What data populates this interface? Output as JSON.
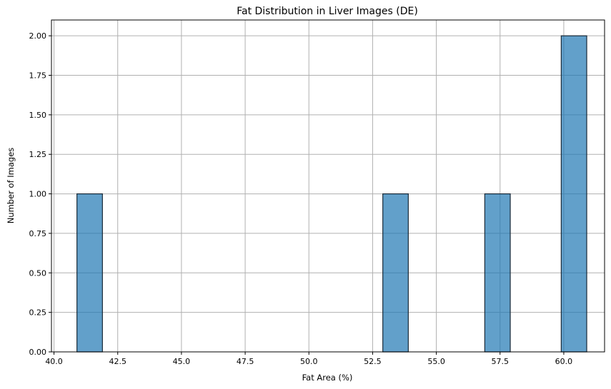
{
  "chart_data": {
    "type": "bar",
    "title": "Fat Distribution in Liver Images (DE)",
    "xlabel": "Fat Area (%)",
    "ylabel": "Number of Images",
    "xlim": [
      39.9,
      61.6
    ],
    "ylim": [
      0,
      2.1
    ],
    "grid": true,
    "bin_width": 1.0,
    "bins": [
      {
        "x0": 40.9,
        "x1": 41.9,
        "count": 1
      },
      {
        "x0": 52.9,
        "x1": 53.9,
        "count": 1
      },
      {
        "x0": 56.9,
        "x1": 57.9,
        "count": 1
      },
      {
        "x0": 59.9,
        "x1": 60.9,
        "count": 2
      }
    ],
    "xticks": [
      40.0,
      42.5,
      45.0,
      47.5,
      50.0,
      52.5,
      55.0,
      57.5,
      60.0
    ],
    "xtick_labels": [
      "40.0",
      "42.5",
      "45.0",
      "47.5",
      "50.0",
      "52.5",
      "55.0",
      "57.5",
      "60.0"
    ],
    "yticks": [
      0,
      0.25,
      0.5,
      0.75,
      1.0,
      1.25,
      1.5,
      1.75,
      2.0
    ],
    "ytick_labels": [
      "0.00",
      "0.25",
      "0.50",
      "0.75",
      "1.00",
      "1.25",
      "1.50",
      "1.75",
      "2.00"
    ],
    "colors": {
      "bar_fill": "#1f77b4",
      "bar_edge": "#1a2a38",
      "grid": "#b0b0b0"
    }
  }
}
